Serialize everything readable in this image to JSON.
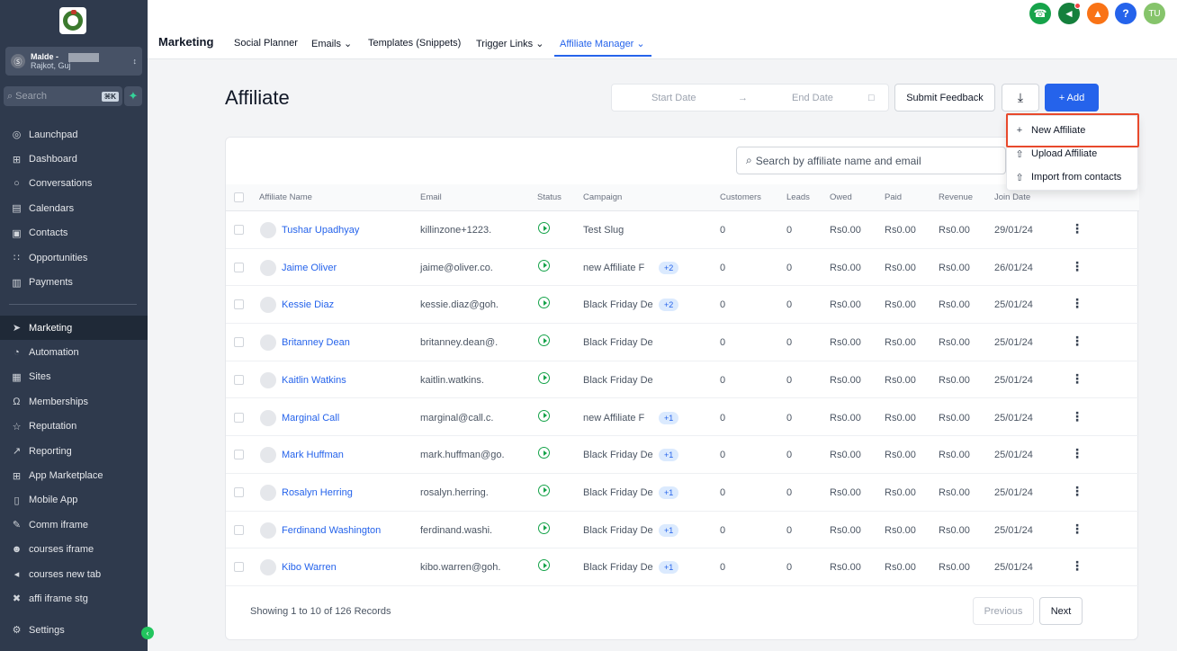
{
  "sidebar": {
    "account": {
      "name": "Malde -",
      "location": "Rajkot, Guj",
      "initial": "Ⓢ"
    },
    "search": {
      "placeholder": "Search",
      "shortcut": "⌘K"
    },
    "items_top": [
      {
        "label": "Launchpad",
        "icon": "launchpad-icon",
        "glyph": "◎"
      },
      {
        "label": "Dashboard",
        "icon": "dashboard-icon",
        "glyph": "⊞"
      },
      {
        "label": "Conversations",
        "icon": "chat-icon",
        "glyph": "○"
      },
      {
        "label": "Calendars",
        "icon": "calendar-icon",
        "glyph": "▤"
      },
      {
        "label": "Contacts",
        "icon": "contacts-icon",
        "glyph": "▣"
      },
      {
        "label": "Opportunities",
        "icon": "opportunities-icon",
        "glyph": "∷"
      },
      {
        "label": "Payments",
        "icon": "payments-icon",
        "glyph": "▥"
      }
    ],
    "items_bottom": [
      {
        "label": "Marketing",
        "icon": "send-icon",
        "glyph": "➤",
        "active": true
      },
      {
        "label": "Automation",
        "icon": "automation-icon",
        "glyph": "◔"
      },
      {
        "label": "Sites",
        "icon": "sites-icon",
        "glyph": "▦"
      },
      {
        "label": "Memberships",
        "icon": "memberships-icon",
        "glyph": "Ω"
      },
      {
        "label": "Reputation",
        "icon": "star-icon",
        "glyph": "☆"
      },
      {
        "label": "Reporting",
        "icon": "reporting-icon",
        "glyph": "↗"
      },
      {
        "label": "App Marketplace",
        "icon": "marketplace-icon",
        "glyph": "⊞"
      },
      {
        "label": "Mobile App",
        "icon": "mobile-icon",
        "glyph": "▯"
      },
      {
        "label": "Comm iframe",
        "icon": "pen-icon",
        "glyph": "✎"
      },
      {
        "label": "courses iframe",
        "icon": "user-add-icon",
        "glyph": "☻"
      },
      {
        "label": "courses new tab",
        "icon": "speaker-icon",
        "glyph": "◂"
      },
      {
        "label": "affi iframe stg",
        "icon": "satellite-icon",
        "glyph": "✖"
      }
    ],
    "settings": {
      "label": "Settings",
      "icon": "gear-icon",
      "glyph": "⚙"
    }
  },
  "topnav": {
    "section": "Marketing",
    "tabs": [
      {
        "label": "Social Planner"
      },
      {
        "label": "Emails ⌄"
      },
      {
        "label": "Templates (Snippets)"
      },
      {
        "label": "Trigger Links ⌄"
      },
      {
        "label": "Affiliate Manager ⌄",
        "active": true
      }
    ],
    "user_initials": "TU"
  },
  "page": {
    "title": "Affiliate",
    "start_date_placeholder": "Start Date",
    "end_date_placeholder": "End Date",
    "submit_feedback": "Submit Feedback",
    "add_label": "+ Add",
    "search_placeholder": "Search by affiliate name and email"
  },
  "dropdown": {
    "items": [
      {
        "label": "New Affiliate",
        "glyph": "+"
      },
      {
        "label": "Upload Affiliate",
        "glyph": "⇧"
      },
      {
        "label": "Import from contacts",
        "glyph": "⇧"
      }
    ]
  },
  "table": {
    "columns": [
      "Affiliate Name",
      "Email",
      "Status",
      "Campaign",
      "Customers",
      "Leads",
      "Owed",
      "Paid",
      "Revenue",
      "Join Date"
    ],
    "rows": [
      {
        "name": "Tushar Upadhyay",
        "email": "killinzone+1223.",
        "campaign": "Test Slug",
        "extra": "",
        "customers": "0",
        "leads": "0",
        "owed": "Rs0.00",
        "paid": "Rs0.00",
        "revenue": "Rs0.00",
        "join": "29/01/24"
      },
      {
        "name": "Jaime Oliver",
        "email": "jaime@oliver.co.",
        "campaign": "new Affiliate F",
        "extra": "+2",
        "customers": "0",
        "leads": "0",
        "owed": "Rs0.00",
        "paid": "Rs0.00",
        "revenue": "Rs0.00",
        "join": "26/01/24"
      },
      {
        "name": "Kessie Diaz",
        "email": "kessie.diaz@goh.",
        "campaign": "Black Friday De",
        "extra": "+2",
        "customers": "0",
        "leads": "0",
        "owed": "Rs0.00",
        "paid": "Rs0.00",
        "revenue": "Rs0.00",
        "join": "25/01/24"
      },
      {
        "name": "Britanney Dean",
        "email": "britanney.dean@.",
        "campaign": "Black Friday De",
        "extra": "",
        "customers": "0",
        "leads": "0",
        "owed": "Rs0.00",
        "paid": "Rs0.00",
        "revenue": "Rs0.00",
        "join": "25/01/24"
      },
      {
        "name": "Kaitlin Watkins",
        "email": "kaitlin.watkins.",
        "campaign": "Black Friday De",
        "extra": "",
        "customers": "0",
        "leads": "0",
        "owed": "Rs0.00",
        "paid": "Rs0.00",
        "revenue": "Rs0.00",
        "join": "25/01/24"
      },
      {
        "name": "Marginal Call",
        "email": "marginal@call.c.",
        "campaign": "new Affiliate F",
        "extra": "+1",
        "customers": "0",
        "leads": "0",
        "owed": "Rs0.00",
        "paid": "Rs0.00",
        "revenue": "Rs0.00",
        "join": "25/01/24"
      },
      {
        "name": "Mark Huffman",
        "email": "mark.huffman@go.",
        "campaign": "Black Friday De",
        "extra": "+1",
        "customers": "0",
        "leads": "0",
        "owed": "Rs0.00",
        "paid": "Rs0.00",
        "revenue": "Rs0.00",
        "join": "25/01/24"
      },
      {
        "name": "Rosalyn Herring",
        "email": "rosalyn.herring.",
        "campaign": "Black Friday De",
        "extra": "+1",
        "customers": "0",
        "leads": "0",
        "owed": "Rs0.00",
        "paid": "Rs0.00",
        "revenue": "Rs0.00",
        "join": "25/01/24"
      },
      {
        "name": "Ferdinand Washington",
        "email": "ferdinand.washi.",
        "campaign": "Black Friday De",
        "extra": "+1",
        "customers": "0",
        "leads": "0",
        "owed": "Rs0.00",
        "paid": "Rs0.00",
        "revenue": "Rs0.00",
        "join": "25/01/24"
      },
      {
        "name": "Kibo Warren",
        "email": "kibo.warren@goh.",
        "campaign": "Black Friday De",
        "extra": "+1",
        "customers": "0",
        "leads": "0",
        "owed": "Rs0.00",
        "paid": "Rs0.00",
        "revenue": "Rs0.00",
        "join": "25/01/24"
      }
    ],
    "footer": "Showing 1 to 10 of 126 Records",
    "previous": "Previous",
    "next": "Next"
  },
  "colors": {
    "accent": "#2563eb",
    "sidebar": "#2f3a4d",
    "status_green": "#16a34a",
    "highlight": "#e8492c"
  }
}
